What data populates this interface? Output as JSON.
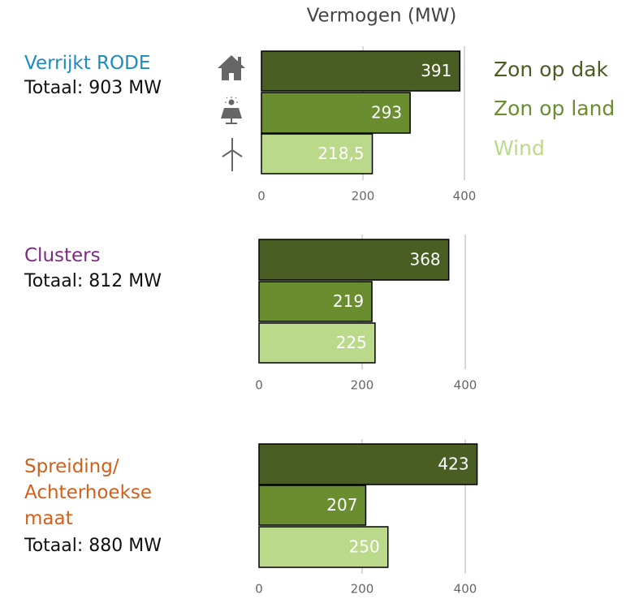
{
  "title": "Vermogen (MW)",
  "legend": [
    {
      "name": "Zon op dak",
      "color": "#4a5e23"
    },
    {
      "name": "Zon op land",
      "color": "#6a8d2f"
    },
    {
      "name": "Wind",
      "color": "#bad98b"
    }
  ],
  "chart_data": [
    {
      "type": "bar",
      "title": "Verrijkt RODE",
      "title_color": "#1b8cc0",
      "subtitle": "Totaal: 903 MW",
      "values": [
        391,
        293,
        218.5
      ],
      "value_labels": [
        "391",
        "293",
        "218,5"
      ],
      "xlim": [
        0,
        400
      ],
      "xticks": [
        0,
        200,
        400
      ]
    },
    {
      "type": "bar",
      "title": "Clusters",
      "title_color": "#7b2a80",
      "subtitle": "Totaal: 812 MW",
      "values": [
        368,
        219,
        225
      ],
      "xlim": [
        0,
        400
      ],
      "xticks": [
        0,
        200,
        400
      ]
    },
    {
      "type": "bar",
      "title": "Spreiding/ Achterhoekse maat",
      "title_color": "#d0601b",
      "subtitle": "Totaal: 880 MW",
      "values": [
        423,
        207,
        250
      ],
      "xlim": [
        0,
        400
      ],
      "xticks": [
        0,
        200,
        400
      ]
    }
  ]
}
